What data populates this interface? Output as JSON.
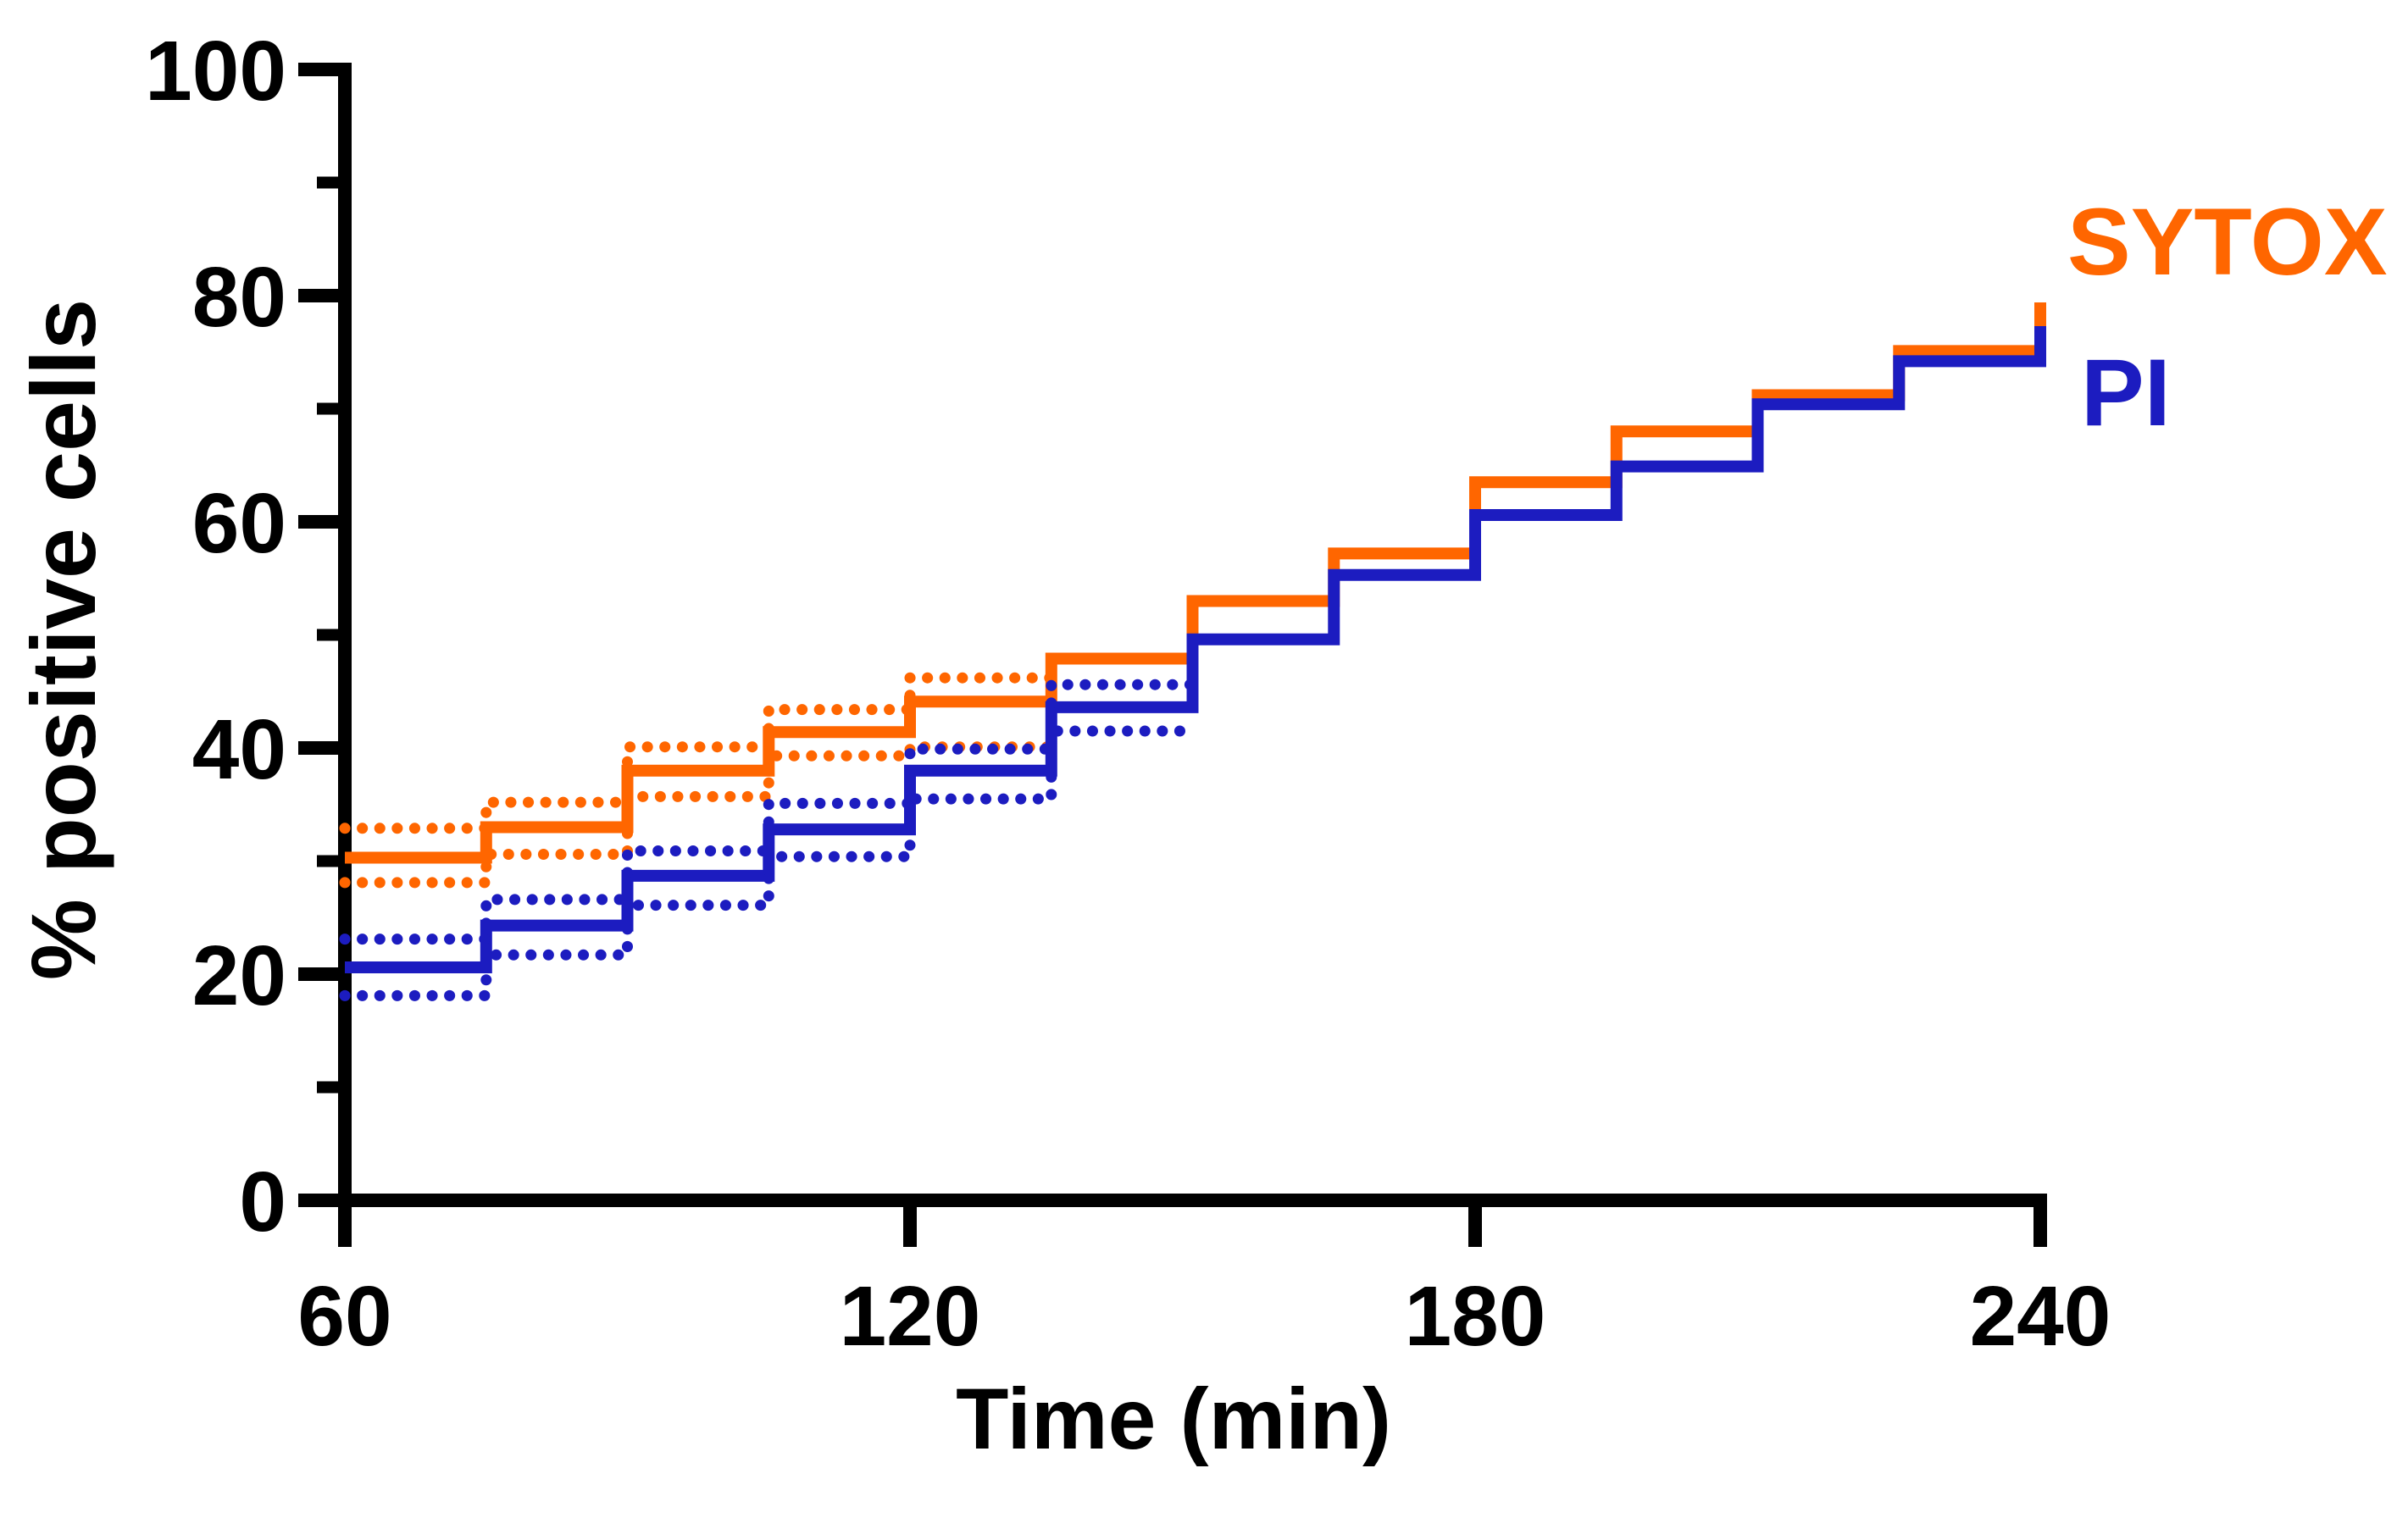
{
  "page": {
    "background": "#ffffff"
  },
  "axis_labels": {
    "x": "Time (min)",
    "y": "% positive cells"
  },
  "legend": {
    "items": [
      {
        "id": "sytox",
        "label": "SYTOX",
        "color": "#ff6600"
      },
      {
        "id": "pi",
        "label": "PI",
        "color": "#1c1cc0"
      }
    ]
  },
  "chart_data": {
    "type": "line",
    "subtype": "step-post",
    "title": "",
    "xlabel": "Time (min)",
    "ylabel": "% positive cells",
    "xlim": [
      60,
      240
    ],
    "ylim": [
      0,
      100
    ],
    "x_ticks_major": [
      60,
      120,
      180,
      240
    ],
    "y_ticks_major": [
      0,
      20,
      40,
      60,
      80,
      100
    ],
    "y_ticks_minor": [
      10,
      30,
      50,
      70,
      90
    ],
    "grid": false,
    "legend_position": "top-right",
    "axis_color": "#000000",
    "step_minutes": 15,
    "step_times": [
      60,
      75,
      90,
      105,
      120,
      135,
      150,
      165,
      180,
      195,
      210,
      225,
      240
    ],
    "series": [
      {
        "id": "sytox_mean",
        "name": "SYTOX",
        "color": "#ff6600",
        "line": "solid",
        "t_start": 60,
        "dt": 15,
        "values": [
          30.3,
          33.0,
          38.0,
          41.4,
          44.1,
          47.9,
          53.0,
          57.2,
          63.5,
          68.0,
          71.2,
          75.1
        ],
        "end_value": 79.4
      },
      {
        "id": "sytox_sd_upper",
        "name": "SYTOX upper dotted band",
        "color": "#ff6600",
        "line": "dotted",
        "t_start": 60,
        "dt": 15,
        "values": [
          32.9,
          35.2,
          40.1,
          43.4,
          46.2
        ]
      },
      {
        "id": "sytox_sd_lower",
        "name": "SYTOX lower dotted band",
        "color": "#ff6600",
        "line": "dotted",
        "t_start": 60,
        "dt": 15,
        "values": [
          28.1,
          30.6,
          35.7,
          39.3,
          40.1
        ]
      },
      {
        "id": "pi_mean",
        "name": "PI",
        "color": "#1c1cc0",
        "line": "solid",
        "t_start": 60,
        "dt": 15,
        "values": [
          20.6,
          24.3,
          28.7,
          32.8,
          38.0,
          43.6,
          49.6,
          55.3,
          60.6,
          64.9,
          70.4,
          74.2
        ],
        "end_value": 77.3
      },
      {
        "id": "pi_sd_upper",
        "name": "PI upper dotted band",
        "color": "#1c1cc0",
        "line": "dotted",
        "t_start": 60,
        "dt": 15,
        "values": [
          23.1,
          26.6,
          30.9,
          35.1,
          39.9,
          45.6
        ]
      },
      {
        "id": "pi_sd_lower",
        "name": "PI lower dotted band",
        "color": "#1c1cc0",
        "line": "dotted",
        "t_start": 60,
        "dt": 15,
        "values": [
          18.1,
          21.7,
          26.1,
          30.4,
          35.5,
          41.5
        ]
      }
    ]
  }
}
